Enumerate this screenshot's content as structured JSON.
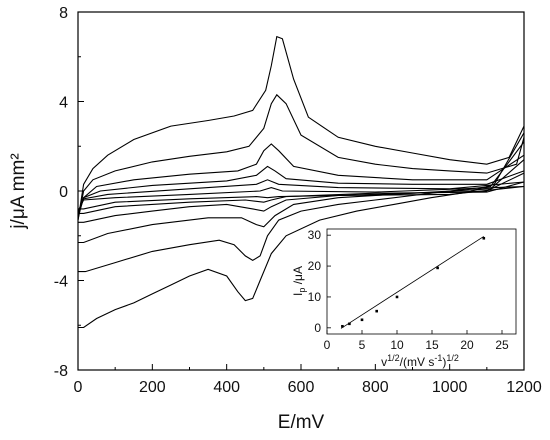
{
  "chart_data": [
    {
      "type": "line",
      "xlabel": "E/mV",
      "ylabel": "j/μA mm²",
      "xlim": [
        0,
        1200
      ],
      "ylim": [
        -8,
        8
      ],
      "xticks": [
        0,
        200,
        400,
        600,
        800,
        1000,
        1200
      ],
      "yticks": [
        -8,
        -4,
        0,
        4,
        8
      ],
      "grid": false,
      "series": [
        {
          "x": [
            0,
            15,
            40,
            80,
            150,
            250,
            350,
            420,
            470,
            505,
            520,
            535,
            550,
            580,
            620,
            700,
            800,
            900,
            1000,
            1100,
            1160,
            1200
          ],
          "y": [
            -1.3,
            0.3,
            1.0,
            1.6,
            2.3,
            2.9,
            3.15,
            3.35,
            3.6,
            4.5,
            5.6,
            6.9,
            6.8,
            5.0,
            3.3,
            2.4,
            2.0,
            1.7,
            1.4,
            1.2,
            1.5,
            2.9
          ]
        },
        {
          "x": [
            1200,
            1120,
            1050,
            950,
            850,
            750,
            650,
            560,
            520,
            490,
            470,
            450,
            430,
            400,
            350,
            300,
            250,
            200,
            150,
            100,
            50,
            15,
            0
          ],
          "y": [
            2.6,
            0.3,
            -0.05,
            -0.3,
            -0.6,
            -0.9,
            -1.3,
            -2.0,
            -2.8,
            -4.0,
            -4.8,
            -4.9,
            -4.5,
            -3.8,
            -3.5,
            -3.8,
            -4.2,
            -4.6,
            -5.0,
            -5.3,
            -5.7,
            -6.1,
            -6.1
          ]
        },
        {
          "x": [
            0,
            15,
            40,
            100,
            200,
            300,
            400,
            460,
            500,
            520,
            535,
            560,
            600,
            700,
            800,
            900,
            1000,
            1100,
            1180,
            1200
          ],
          "y": [
            -1.3,
            0.0,
            0.5,
            0.9,
            1.3,
            1.55,
            1.75,
            2.0,
            2.8,
            3.9,
            4.3,
            3.9,
            2.5,
            1.5,
            1.2,
            1.0,
            0.9,
            0.8,
            1.2,
            2.4
          ]
        },
        {
          "x": [
            1200,
            1110,
            1000,
            900,
            800,
            700,
            600,
            540,
            510,
            490,
            470,
            450,
            420,
            380,
            300,
            200,
            100,
            20,
            0
          ],
          "y": [
            2.2,
            0.2,
            0.0,
            -0.2,
            -0.4,
            -0.6,
            -0.9,
            -1.3,
            -2.0,
            -2.9,
            -3.1,
            -2.9,
            -2.4,
            -2.2,
            -2.4,
            -2.7,
            -3.2,
            -3.6,
            -3.6
          ]
        },
        {
          "x": [
            0,
            15,
            50,
            150,
            300,
            430,
            480,
            500,
            520,
            540,
            580,
            700,
            900,
            1100,
            1200
          ],
          "y": [
            -1.2,
            -0.3,
            0.2,
            0.5,
            0.75,
            0.9,
            1.2,
            1.8,
            2.1,
            1.8,
            1.1,
            0.7,
            0.5,
            0.5,
            1.6
          ]
        },
        {
          "x": [
            1200,
            1110,
            900,
            700,
            580,
            530,
            500,
            480,
            440,
            350,
            200,
            80,
            15,
            0
          ],
          "y": [
            1.4,
            0.1,
            -0.1,
            -0.3,
            -0.6,
            -1.1,
            -1.6,
            -1.5,
            -1.2,
            -1.2,
            -1.5,
            -1.9,
            -2.3,
            -2.3
          ]
        },
        {
          "x": [
            0,
            15,
            60,
            200,
            400,
            480,
            510,
            530,
            560,
            700,
            900,
            1100,
            1200
          ],
          "y": [
            -1.1,
            -0.3,
            0.0,
            0.25,
            0.45,
            0.7,
            1.1,
            0.9,
            0.55,
            0.35,
            0.3,
            0.3,
            0.9
          ]
        },
        {
          "x": [
            1200,
            1100,
            900,
            700,
            560,
            520,
            500,
            470,
            400,
            300,
            200,
            100,
            15,
            0
          ],
          "y": [
            0.8,
            0.0,
            -0.1,
            -0.2,
            -0.4,
            -0.7,
            -0.9,
            -0.8,
            -0.6,
            -0.7,
            -0.9,
            -1.1,
            -1.4,
            -1.4
          ]
        },
        {
          "x": [
            0,
            15,
            80,
            300,
            480,
            510,
            540,
            700,
            1000,
            1200
          ],
          "y": [
            -1.0,
            -0.35,
            -0.15,
            0.1,
            0.3,
            0.5,
            0.3,
            0.15,
            0.1,
            0.4
          ]
        },
        {
          "x": [
            1200,
            1100,
            800,
            560,
            520,
            500,
            450,
            300,
            100,
            15,
            0
          ],
          "y": [
            0.4,
            -0.05,
            -0.1,
            -0.25,
            -0.4,
            -0.5,
            -0.4,
            -0.5,
            -0.7,
            -1.0,
            -1.0
          ]
        },
        {
          "x": [
            0,
            15,
            100,
            300,
            490,
            520,
            550,
            800,
            1200
          ],
          "y": [
            -0.9,
            -0.4,
            -0.3,
            -0.15,
            0.0,
            0.15,
            0.0,
            -0.05,
            0.2
          ]
        },
        {
          "x": [
            1200,
            1000,
            700,
            540,
            510,
            480,
            300,
            100,
            15,
            0
          ],
          "y": [
            0.2,
            -0.15,
            -0.2,
            -0.25,
            -0.3,
            -0.25,
            -0.35,
            -0.5,
            -0.8,
            -0.8
          ]
        }
      ]
    },
    {
      "type": "scatter",
      "xlabel_parts": {
        "base": "v",
        "sup1": "1/2",
        "mid": "/(mV s",
        "sup2": "-1",
        "end": ")",
        "sup3": "1/2"
      },
      "ylabel_parts": {
        "base": "I",
        "sub": "p",
        "end": " /μA"
      },
      "xlim": [
        0,
        27
      ],
      "ylim": [
        -2,
        32
      ],
      "xticks": [
        0,
        5,
        10,
        15,
        20,
        25
      ],
      "yticks": [
        0,
        10,
        20,
        30
      ],
      "points": [
        {
          "x": 2.2,
          "y": 0.5
        },
        {
          "x": 3.2,
          "y": 1.3
        },
        {
          "x": 5.0,
          "y": 2.6
        },
        {
          "x": 7.1,
          "y": 5.4
        },
        {
          "x": 10.0,
          "y": 10.0
        },
        {
          "x": 15.8,
          "y": 19.4
        },
        {
          "x": 22.4,
          "y": 29.0
        }
      ],
      "fit_line": {
        "x": [
          2.0,
          22.4
        ],
        "y": [
          -0.2,
          29.6
        ]
      }
    }
  ]
}
